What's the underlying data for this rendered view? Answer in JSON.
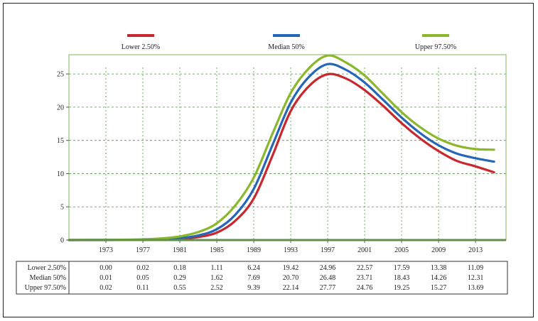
{
  "chart_data": {
    "type": "line",
    "title": "",
    "xlabel": "",
    "ylabel": "",
    "xlim": [
      1969,
      2016
    ],
    "ylim": [
      0,
      28
    ],
    "y_ticks": [
      0,
      5,
      10,
      15,
      20,
      25
    ],
    "x_ticks": [
      1973,
      1977,
      1981,
      1985,
      1989,
      1993,
      1997,
      2001,
      2005,
      2009,
      2013
    ],
    "grid": true,
    "legend_position": "top",
    "series": [
      {
        "name": "Lower 2.50%",
        "color": "#c8282d",
        "x": [
          1969,
          1971,
          1973,
          1975,
          1977,
          1979,
          1981,
          1983,
          1985,
          1987,
          1989,
          1991,
          1993,
          1995,
          1997,
          1999,
          2001,
          2003,
          2005,
          2007,
          2009,
          2011,
          2013,
          2015
        ],
        "values": [
          0.0,
          0.0,
          0.0,
          0.01,
          0.02,
          0.06,
          0.18,
          0.45,
          1.11,
          2.9,
          6.24,
          12.6,
          19.42,
          23.2,
          24.96,
          24.3,
          22.57,
          20.2,
          17.59,
          15.3,
          13.38,
          11.9,
          11.09,
          10.2
        ]
      },
      {
        "name": "Median 50%",
        "color": "#2566b8",
        "x": [
          1969,
          1971,
          1973,
          1975,
          1977,
          1979,
          1981,
          1983,
          1985,
          1987,
          1989,
          1991,
          1993,
          1995,
          1997,
          1999,
          2001,
          2003,
          2005,
          2007,
          2009,
          2011,
          2013,
          2015
        ],
        "values": [
          0.0,
          0.01,
          0.01,
          0.02,
          0.05,
          0.12,
          0.29,
          0.7,
          1.62,
          3.8,
          7.69,
          14.2,
          20.7,
          24.6,
          26.48,
          25.6,
          23.71,
          21.1,
          18.43,
          16.1,
          14.26,
          13.0,
          12.31,
          11.8
        ]
      },
      {
        "name": "Upper 97.50%",
        "color": "#8ab82a",
        "x": [
          1969,
          1971,
          1973,
          1975,
          1977,
          1979,
          1981,
          1983,
          1985,
          1987,
          1989,
          1991,
          1993,
          1995,
          1997,
          1999,
          2001,
          2003,
          2005,
          2007,
          2009,
          2011,
          2013,
          2015
        ],
        "values": [
          0.0,
          0.02,
          0.02,
          0.05,
          0.11,
          0.25,
          0.55,
          1.2,
          2.52,
          5.2,
          9.39,
          15.9,
          22.14,
          25.9,
          27.77,
          26.7,
          24.76,
          22.0,
          19.25,
          17.0,
          15.27,
          14.2,
          13.69,
          13.6
        ]
      }
    ],
    "table": {
      "columns": [
        1973,
        1977,
        1981,
        1985,
        1989,
        1993,
        1997,
        2001,
        2005,
        2009,
        2013
      ],
      "rows": [
        {
          "label": "Lower 2.50%",
          "values": [
            "0.00",
            "0.02",
            "0.18",
            "1.11",
            "6.24",
            "19.42",
            "24.96",
            "22.57",
            "17.59",
            "13.38",
            "11.09"
          ]
        },
        {
          "label": "Median 50%",
          "values": [
            "0.01",
            "0.05",
            "0.29",
            "1.62",
            "7.69",
            "20.70",
            "26.48",
            "23.71",
            "18.43",
            "14.26",
            "12.31"
          ]
        },
        {
          "label": "Upper 97.50%",
          "values": [
            "0.02",
            "0.11",
            "0.55",
            "2.52",
            "9.39",
            "22.14",
            "27.77",
            "24.76",
            "19.25",
            "15.27",
            "13.69"
          ]
        }
      ]
    }
  }
}
